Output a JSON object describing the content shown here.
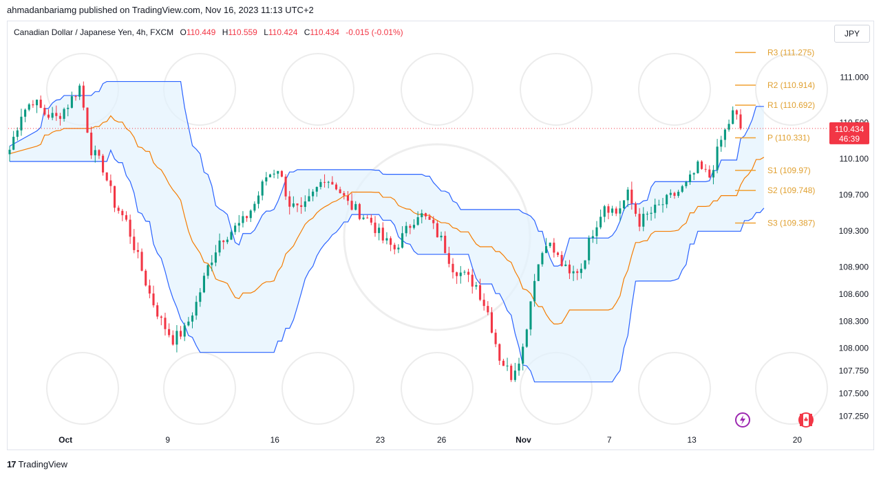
{
  "publish_line": "ahmadanbariamg published on TradingView.com, Nov 16, 2023 11:13 UTC+2",
  "legend": {
    "symbol": "Canadian Dollar / Japanese Yen, 4h, FXCM",
    "o_label": "O",
    "o": "110.449",
    "h_label": "H",
    "h": "110.559",
    "l_label": "L",
    "l": "110.424",
    "c_label": "C",
    "c": "110.434",
    "change": "-0.015 (-0.01%)"
  },
  "currency_button": "JPY",
  "footer_brand": "TradingView",
  "footer_logo": "17",
  "colors": {
    "up": "#089981",
    "down": "#f23645",
    "channel": "#2962ff",
    "middle": "#f57c00",
    "pivot": "#f0a030",
    "fill": "#e3f2fd"
  },
  "price_tag": {
    "price": "110.434",
    "countdown": "46:39"
  },
  "chart_data": {
    "type": "candlestick",
    "title": "",
    "ylim": [
      107.1,
      111.4
    ],
    "y_ticks": [
      111.0,
      110.5,
      110.1,
      109.7,
      109.3,
      108.9,
      108.6,
      108.3,
      108.0,
      107.75,
      107.5,
      107.25
    ],
    "y_tick_labels": [
      "111.000",
      "110.500",
      "110.100",
      "109.700",
      "109.300",
      "108.900",
      "108.600",
      "108.300",
      "108.000",
      "107.750",
      "107.500",
      "107.250"
    ],
    "x_ticks": [
      {
        "label": "Oct",
        "pos": 0.07
      },
      {
        "label": "9",
        "pos": 0.195
      },
      {
        "label": "16",
        "pos": 0.326
      },
      {
        "label": "23",
        "pos": 0.455
      },
      {
        "label": "26",
        "pos": 0.53
      },
      {
        "label": "Nov",
        "pos": 0.63
      },
      {
        "label": "7",
        "pos": 0.735
      },
      {
        "label": "13",
        "pos": 0.836
      },
      {
        "label": "20",
        "pos": 0.965
      }
    ],
    "pivots": [
      {
        "name": "R3",
        "label": "R3 (111.275)",
        "value": 111.275
      },
      {
        "name": "R2",
        "label": "R2 (110.914)",
        "value": 110.914
      },
      {
        "name": "R1",
        "label": "R1 (110.692)",
        "value": 110.692
      },
      {
        "name": "P",
        "label": "P (110.331)",
        "value": 110.331
      },
      {
        "name": "S1",
        "label": "S1 (109.97)",
        "value": 109.97
      },
      {
        "name": "S2",
        "label": "S2 (109.748)",
        "value": 109.748
      },
      {
        "name": "S3",
        "label": "S3 (109.387)",
        "value": 109.387
      }
    ],
    "last_price": 110.434,
    "close_path": [
      110.2,
      110.6,
      110.75,
      110.6,
      110.55,
      110.7,
      110.9,
      110.2,
      110.0,
      109.6,
      109.4,
      109.0,
      108.6,
      108.3,
      108.1,
      108.2,
      108.5,
      108.9,
      109.2,
      109.3,
      109.4,
      109.6,
      109.9,
      110.0,
      109.6,
      109.5,
      109.7,
      109.9,
      109.8,
      109.6,
      109.5,
      109.4,
      109.2,
      109.1,
      109.3,
      109.5,
      109.4,
      109.2,
      108.9,
      108.8,
      108.7,
      108.4,
      107.9,
      107.7,
      108.0,
      108.8,
      109.2,
      109.0,
      108.8,
      108.9,
      109.3,
      109.6,
      109.5,
      109.7,
      109.4,
      109.5,
      109.6,
      109.7,
      109.8,
      110.0,
      109.9,
      110.3,
      110.6,
      110.45
    ]
  }
}
